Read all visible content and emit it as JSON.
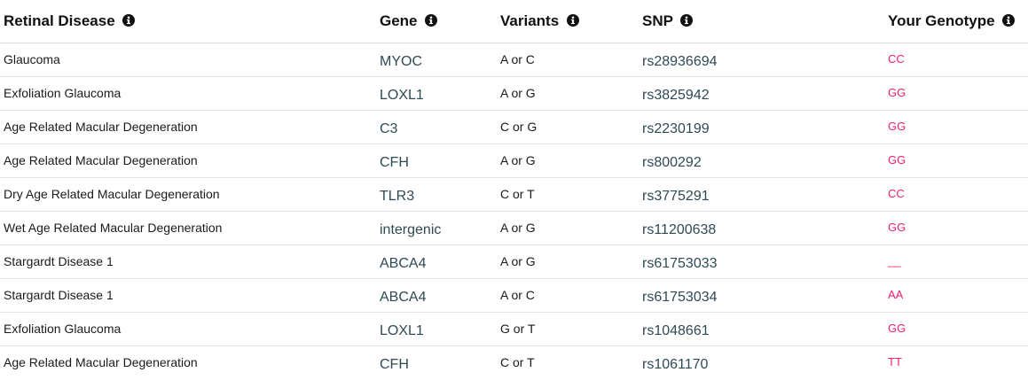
{
  "table": {
    "headers": {
      "disease": "Retinal Disease",
      "gene": "Gene",
      "variants": "Variants",
      "snp": "SNP",
      "genotype": "Your Genotype"
    },
    "header_icon": "info-circle-icon",
    "rows": [
      {
        "disease": "Glaucoma",
        "gene": "MYOC",
        "variants": "A or C",
        "snp": "rs28936694",
        "genotype": "CC"
      },
      {
        "disease": "Exfoliation Glaucoma",
        "gene": "LOXL1",
        "variants": "A or G",
        "snp": "rs3825942",
        "genotype": "GG"
      },
      {
        "disease": "Age Related Macular Degeneration",
        "gene": "C3",
        "variants": "C or G",
        "snp": "rs2230199",
        "genotype": "GG"
      },
      {
        "disease": "Age Related Macular Degeneration",
        "gene": "CFH",
        "variants": "A or G",
        "snp": "rs800292",
        "genotype": "GG"
      },
      {
        "disease": "Dry Age Related Macular Degeneration",
        "gene": "TLR3",
        "variants": "C or T",
        "snp": "rs3775291",
        "genotype": "CC"
      },
      {
        "disease": "Wet Age Related Macular Degeneration",
        "gene": "intergenic",
        "variants": "A or G",
        "snp": "rs11200638",
        "genotype": "GG"
      },
      {
        "disease": "Stargardt Disease 1",
        "gene": "ABCA4",
        "variants": "A or G",
        "snp": "rs61753033",
        "genotype": "__"
      },
      {
        "disease": "Stargardt Disease 1",
        "gene": "ABCA4",
        "variants": "A or C",
        "snp": "rs61753034",
        "genotype": "AA"
      },
      {
        "disease": "Exfoliation Glaucoma",
        "gene": "LOXL1",
        "variants": "G or T",
        "snp": "rs1048661",
        "genotype": "GG"
      },
      {
        "disease": "Age Related Macular Degeneration",
        "gene": "CFH",
        "variants": "C or T",
        "snp": "rs1061170",
        "genotype": "TT"
      }
    ]
  },
  "colors": {
    "genotype_text": "#ee1f6f",
    "gene_snp_text": "#2f4a55",
    "row_divider": "#e4e4e4"
  }
}
